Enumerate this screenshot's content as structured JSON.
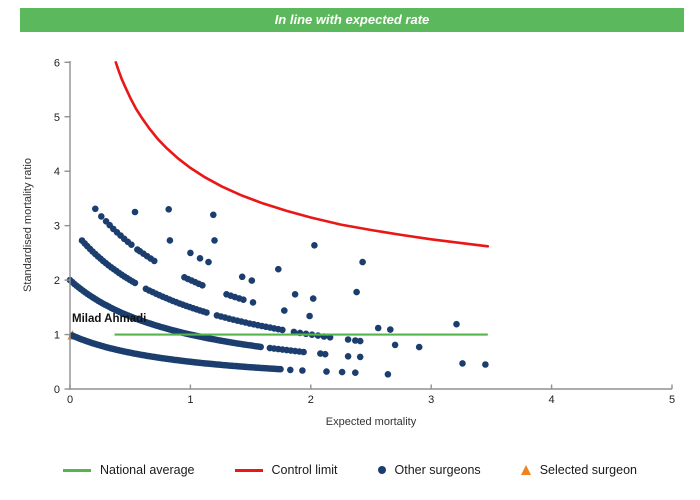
{
  "banner": {
    "text": "In line with expected rate",
    "bg_color": "#5cb85c",
    "text_color": "#ffffff"
  },
  "chart_data": {
    "type": "scatter",
    "title": "In line with expected rate",
    "xlabel": "Expected mortality",
    "ylabel": "Standardised mortality ratio",
    "xlim": [
      0,
      5
    ],
    "ylim": [
      0,
      6
    ],
    "x_ticks": [
      "0",
      "1",
      "2",
      "3",
      "4",
      "5"
    ],
    "y_ticks": [
      "0",
      "1",
      "2",
      "3",
      "4",
      "5",
      "6"
    ],
    "grid": false,
    "legend_position": "bottom",
    "national_average": {
      "label": "National average",
      "y": 1.0,
      "x_start": 0.37,
      "x_end": 3.47,
      "color": "#55b54c"
    },
    "control_limit": {
      "label": "Control limit",
      "color": "#ea1717",
      "points": [
        [
          0.38,
          6.0
        ],
        [
          0.4,
          5.87
        ],
        [
          0.43,
          5.69
        ],
        [
          0.46,
          5.54
        ],
        [
          0.5,
          5.35
        ],
        [
          0.55,
          5.14
        ],
        [
          0.6,
          4.97
        ],
        [
          0.66,
          4.78
        ],
        [
          0.73,
          4.59
        ],
        [
          0.8,
          4.43
        ],
        [
          0.9,
          4.23
        ],
        [
          1.0,
          4.06
        ],
        [
          1.12,
          3.89
        ],
        [
          1.26,
          3.72
        ],
        [
          1.42,
          3.56
        ],
        [
          1.6,
          3.41
        ],
        [
          1.8,
          3.27
        ],
        [
          2.0,
          3.15
        ],
        [
          2.25,
          3.02
        ],
        [
          2.5,
          2.92
        ],
        [
          2.75,
          2.83
        ],
        [
          3.0,
          2.75
        ],
        [
          3.25,
          2.68
        ],
        [
          3.47,
          2.62
        ]
      ]
    },
    "other_surgeons": {
      "label": "Other surgeons",
      "color": "#1c3e6f",
      "marker": "dot",
      "point_radius": 3.3,
      "curve_formula": "smr = deaths / (1 + expected_mortality)",
      "dense_bands": [
        {
          "deaths": 1,
          "segments": [
            [
              0.02,
              1.75,
              0.016
            ]
          ]
        },
        {
          "deaths": 2,
          "segments": [
            [
              0.0,
              1.6,
              0.018
            ],
            [
              1.66,
              1.95,
              0.035
            ]
          ]
        },
        {
          "deaths": 3,
          "segments": [
            [
              0.1,
              0.55,
              0.022
            ],
            [
              0.63,
              1.15,
              0.028
            ],
            [
              1.22,
              1.78,
              0.034
            ],
            [
              1.86,
              2.2,
              0.05
            ]
          ]
        },
        {
          "deaths": 4,
          "segments": [
            [
              0.33,
              0.48,
              0.03
            ],
            [
              0.58,
              0.72,
              0.03
            ],
            [
              0.95,
              1.12,
              0.03
            ],
            [
              1.3,
              1.45,
              0.035
            ]
          ]
        }
      ],
      "points": [
        [
          1.83,
          0.35
        ],
        [
          1.93,
          0.34
        ],
        [
          2.13,
          0.32
        ],
        [
          2.26,
          0.31
        ],
        [
          2.37,
          0.3
        ],
        [
          2.64,
          0.27
        ],
        [
          2.08,
          0.65
        ],
        [
          2.12,
          0.64
        ],
        [
          2.31,
          0.6
        ],
        [
          2.41,
          0.59
        ],
        [
          3.26,
          0.47
        ],
        [
          3.45,
          0.45
        ],
        [
          2.31,
          0.91
        ],
        [
          2.37,
          0.89
        ],
        [
          2.41,
          0.88
        ],
        [
          2.7,
          0.81
        ],
        [
          2.9,
          0.77
        ],
        [
          0.21,
          3.31
        ],
        [
          0.26,
          3.17
        ],
        [
          0.3,
          3.08
        ],
        [
          0.51,
          2.65
        ],
        [
          0.56,
          2.56
        ],
        [
          1.52,
          1.59
        ],
        [
          1.78,
          1.44
        ],
        [
          1.99,
          1.34
        ],
        [
          2.56,
          1.12
        ],
        [
          2.66,
          1.09
        ],
        [
          0.54,
          3.25
        ],
        [
          0.83,
          2.73
        ],
        [
          1.0,
          2.5
        ],
        [
          1.08,
          2.4
        ],
        [
          1.15,
          2.33
        ],
        [
          1.43,
          2.06
        ],
        [
          1.51,
          1.99
        ],
        [
          1.87,
          1.74
        ],
        [
          2.02,
          1.66
        ],
        [
          3.21,
          1.19
        ],
        [
          0.82,
          3.3
        ],
        [
          1.2,
          2.73
        ],
        [
          1.73,
          2.2
        ],
        [
          2.38,
          1.78
        ],
        [
          1.19,
          3.2
        ],
        [
          2.03,
          2.64
        ],
        [
          2.43,
          2.33
        ]
      ]
    },
    "selected_surgeon": {
      "label": "Milad Ahmadi",
      "x": 0.02,
      "y": 0.98,
      "color": "#f08223",
      "marker": "triangle"
    }
  },
  "legend": {
    "items": [
      {
        "label": "National average",
        "marker": "line",
        "color": "#55b54c"
      },
      {
        "label": "Control limit",
        "marker": "line",
        "color": "#ea1717"
      },
      {
        "label": "Other surgeons",
        "marker": "dot",
        "color": "#1c3e6f"
      },
      {
        "label": "Selected surgeon",
        "marker": "triangle",
        "color": "#f08223"
      }
    ]
  }
}
